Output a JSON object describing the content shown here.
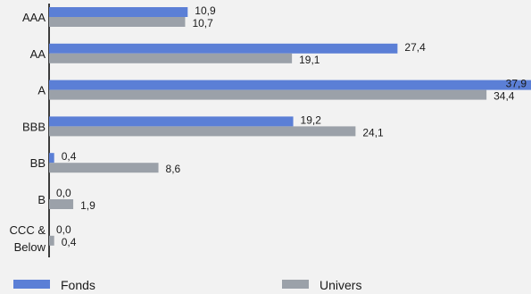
{
  "chart_data": {
    "type": "bar",
    "orientation": "horizontal",
    "categories": [
      "AAA",
      "AA",
      "A",
      "BBB",
      "BB",
      "B",
      "CCC & Below"
    ],
    "series": [
      {
        "name": "Fonds",
        "values": [
          10.9,
          27.4,
          37.9,
          19.2,
          0.4,
          0.0,
          0.0
        ],
        "color": "#5b7fd6"
      },
      {
        "name": "Univers",
        "values": [
          10.7,
          19.1,
          34.4,
          24.1,
          8.6,
          1.9,
          0.4
        ],
        "color": "#9ba1a9"
      }
    ],
    "value_labels": [
      [
        "10,9",
        "27,4",
        "37,9",
        "19,2",
        "0,4",
        "0,0",
        "0,0"
      ],
      [
        "10,7",
        "19,1",
        "34,4",
        "24,1",
        "8,6",
        "1,9",
        "0,4"
      ]
    ],
    "xlim": [
      0,
      37.9
    ],
    "grid": false,
    "legend_position": "bottom",
    "legend": [
      "Fonds",
      "Univers"
    ]
  }
}
